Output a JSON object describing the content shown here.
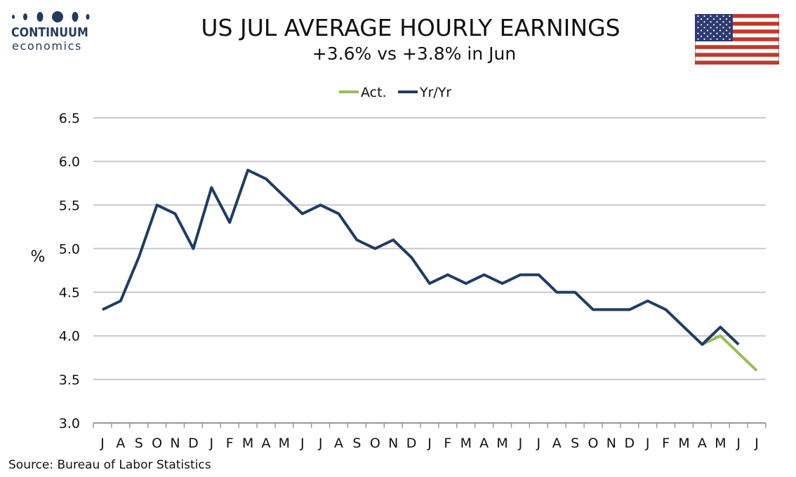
{
  "brand": {
    "name": "CONTINUUM",
    "sub": "economics",
    "dot_color": "#233b5c"
  },
  "flag_icon": "us-flag-icon",
  "source": "Source: Bureau of Labor Statistics",
  "chart_data": {
    "type": "line",
    "title": "US JUL AVERAGE HOURLY EARNINGS",
    "subtitle": "+3.6% vs +3.8% in Jun",
    "ylabel": "%",
    "ylim": [
      3.0,
      6.5
    ],
    "yticks": [
      "3.0",
      "3.5",
      "4.0",
      "4.5",
      "5.0",
      "5.5",
      "6.0",
      "6.5"
    ],
    "grid": true,
    "legend_position": "top",
    "categories": [
      "J",
      "A",
      "S",
      "O",
      "N",
      "D",
      "J",
      "F",
      "M",
      "A",
      "M",
      "J",
      "J",
      "A",
      "S",
      "O",
      "N",
      "D",
      "J",
      "F",
      "M",
      "A",
      "M",
      "J",
      "J",
      "A",
      "S",
      "O",
      "N",
      "D",
      "J",
      "F",
      "M",
      "A",
      "M",
      "J",
      "J"
    ],
    "series": [
      {
        "name": "Act.",
        "color": "#9bbb59",
        "values": [
          null,
          null,
          null,
          null,
          null,
          null,
          null,
          null,
          null,
          null,
          null,
          null,
          null,
          null,
          null,
          null,
          null,
          null,
          null,
          null,
          null,
          null,
          null,
          null,
          null,
          null,
          null,
          null,
          null,
          null,
          null,
          null,
          null,
          3.9,
          4.0,
          3.8,
          3.6
        ]
      },
      {
        "name": "Yr/Yr",
        "color": "#1f3d63",
        "values": [
          4.3,
          4.4,
          4.9,
          5.5,
          5.4,
          5.0,
          5.7,
          5.3,
          5.9,
          5.8,
          5.6,
          5.4,
          5.5,
          5.4,
          5.1,
          5.0,
          5.1,
          4.9,
          4.6,
          4.7,
          4.6,
          4.7,
          4.6,
          4.7,
          4.7,
          4.5,
          4.5,
          4.3,
          4.3,
          4.3,
          4.4,
          4.3,
          4.1,
          3.9,
          4.1,
          3.9,
          null
        ]
      }
    ]
  }
}
